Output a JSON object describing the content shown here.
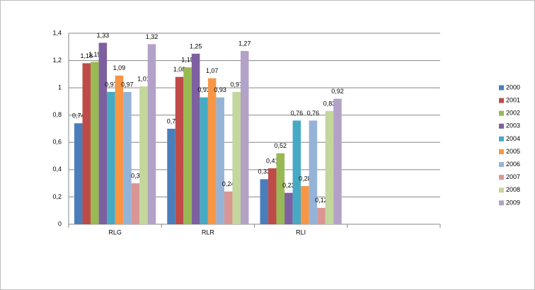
{
  "chart_data": {
    "type": "bar",
    "categories": [
      "RLG",
      "RLR",
      "RLI",
      null
    ],
    "series": [
      {
        "name": "2000",
        "color": "#4a7ebb",
        "values": [
          0.74,
          0.7,
          0.33,
          null
        ],
        "value_labels": [
          "0,74",
          "0,7",
          "0,33",
          null
        ]
      },
      {
        "name": "2001",
        "color": "#be4b48",
        "values": [
          1.18,
          1.08,
          0.41,
          null
        ],
        "value_labels": [
          "1,18",
          "1,08",
          "0,41",
          null
        ]
      },
      {
        "name": "2002",
        "color": "#98b954",
        "values": [
          1.19,
          1.15,
          0.52,
          null
        ],
        "value_labels": [
          "1,19",
          "1,15",
          "0,52",
          null
        ]
      },
      {
        "name": "2003",
        "color": "#7d60a0",
        "values": [
          1.33,
          1.25,
          0.23,
          null
        ],
        "value_labels": [
          "1,33",
          "1,25",
          "0,23",
          null
        ]
      },
      {
        "name": "2004",
        "color": "#46aac5",
        "values": [
          0.97,
          0.93,
          0.76,
          null
        ],
        "value_labels": [
          "0,97",
          "0,93",
          "0,76",
          null
        ]
      },
      {
        "name": "2005",
        "color": "#f79646",
        "values": [
          1.09,
          1.07,
          0.28,
          null
        ],
        "value_labels": [
          "1,09",
          "1,07",
          "0,28",
          null
        ]
      },
      {
        "name": "2006",
        "color": "#95b3d7",
        "values": [
          0.97,
          0.93,
          0.76,
          null
        ],
        "value_labels": [
          "0,97",
          "0,93",
          "0,76",
          null
        ]
      },
      {
        "name": "2007",
        "color": "#d99694",
        "values": [
          0.3,
          0.24,
          0.12,
          null
        ],
        "value_labels": [
          "0,3",
          "0,24",
          "0,12",
          null
        ]
      },
      {
        "name": "2008",
        "color": "#c3d69b",
        "values": [
          1.01,
          0.97,
          0.83,
          null
        ],
        "value_labels": [
          "1,01",
          "0,97",
          "0,83",
          null
        ]
      },
      {
        "name": "2009",
        "color": "#b3a2c7",
        "values": [
          1.32,
          1.27,
          0.92,
          null
        ],
        "value_labels": [
          "1,32",
          "1,27",
          "0,92",
          null
        ]
      }
    ],
    "ylim": [
      0,
      1.4
    ],
    "yticks": [
      0,
      {
        "value": 0.2,
        "label": "0,2"
      },
      {
        "value": 0.4,
        "label": "0,4"
      },
      {
        "value": 0.6,
        "label": "0,6"
      },
      {
        "value": 0.8,
        "label": "0,8"
      },
      1,
      {
        "value": 1.2,
        "label": "1,2"
      },
      {
        "value": 1.4,
        "label": "1,4"
      }
    ],
    "grid": true,
    "legend": "right"
  }
}
